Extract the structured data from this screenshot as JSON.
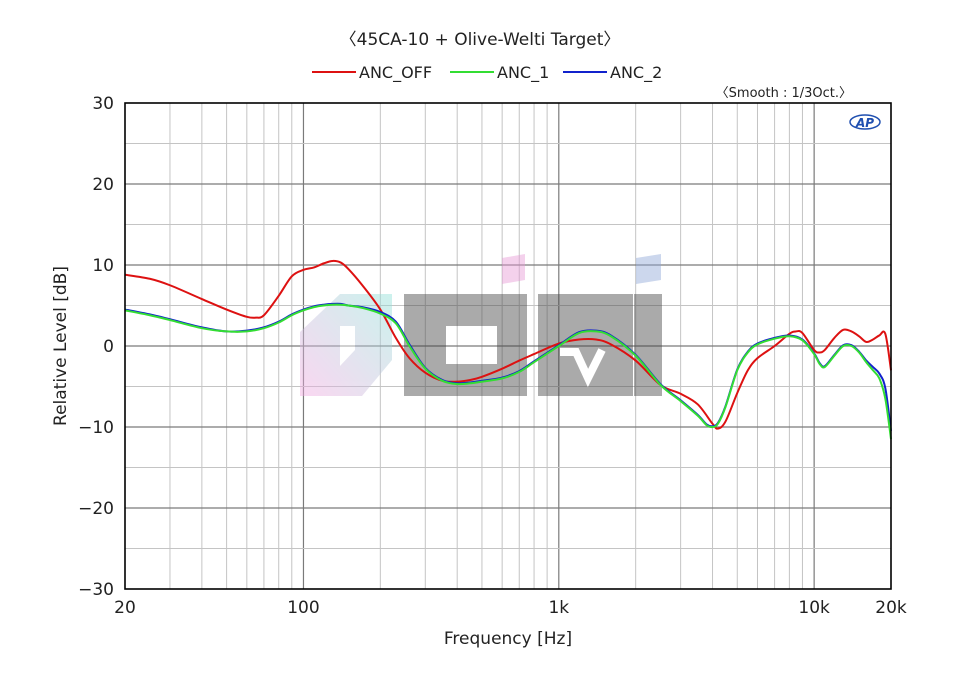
{
  "chart_data": {
    "type": "line",
    "title": "〈45CA-10 + Olive-Welti Target〉",
    "annotation": "〈Smooth : 1/3Oct.〉",
    "logo": "AP",
    "xlabel": "Frequency [Hz]",
    "ylabel": "Relative Level [dB]",
    "x_scale": "log",
    "xlim": [
      20,
      20000
    ],
    "ylim": [
      -30,
      30
    ],
    "x_ticks": [
      {
        "value": 20,
        "label": "20"
      },
      {
        "value": 100,
        "label": "100"
      },
      {
        "value": 1000,
        "label": "1k"
      },
      {
        "value": 10000,
        "label": "10k"
      },
      {
        "value": 20000,
        "label": "20k"
      }
    ],
    "y_ticks": [
      {
        "value": 30,
        "label": "30"
      },
      {
        "value": 20,
        "label": "20"
      },
      {
        "value": 10,
        "label": "10"
      },
      {
        "value": 0,
        "label": "0"
      },
      {
        "value": -10,
        "label": "−10"
      },
      {
        "value": -20,
        "label": "−20"
      },
      {
        "value": -30,
        "label": "−30"
      }
    ],
    "grid": true,
    "legend_position": "top-center",
    "series": [
      {
        "name": "ANC_OFF",
        "color": "#dd1111",
        "x": [
          20,
          25,
          30,
          40,
          50,
          60,
          65,
          70,
          80,
          90,
          100,
          110,
          120,
          130,
          140,
          150,
          170,
          200,
          230,
          260,
          300,
          350,
          400,
          450,
          500,
          600,
          700,
          800,
          1000,
          1200,
          1400,
          1600,
          2000,
          2500,
          3000,
          3500,
          4000,
          4200,
          4500,
          5000,
          5500,
          6000,
          7000,
          8000,
          8500,
          9000,
          10000,
          10500,
          11000,
          12000,
          13000,
          14000,
          15000,
          16000,
          17000,
          18000,
          19000,
          20000
        ],
        "y": [
          8.8,
          8.3,
          7.5,
          5.8,
          4.5,
          3.6,
          3.5,
          3.8,
          6.2,
          8.6,
          9.4,
          9.7,
          10.2,
          10.5,
          10.3,
          9.5,
          7.5,
          4.5,
          1.0,
          -1.5,
          -3.3,
          -4.3,
          -4.4,
          -4.2,
          -3.8,
          -2.8,
          -1.8,
          -1.0,
          0.3,
          0.8,
          0.8,
          0.2,
          -1.8,
          -4.8,
          -5.9,
          -7.2,
          -9.6,
          -10.2,
          -9.3,
          -5.8,
          -3.0,
          -1.5,
          0.0,
          1.5,
          1.8,
          1.6,
          -0.5,
          -0.8,
          -0.5,
          1.0,
          2.0,
          1.8,
          1.2,
          0.5,
          0.8,
          1.3,
          1.5,
          -3.0
        ]
      },
      {
        "name": "ANC_1",
        "color": "#33dd33",
        "x": [
          20,
          25,
          30,
          40,
          50,
          60,
          70,
          80,
          90,
          100,
          110,
          120,
          130,
          140,
          150,
          170,
          200,
          230,
          260,
          300,
          350,
          400,
          450,
          500,
          600,
          700,
          800,
          1000,
          1200,
          1400,
          1600,
          2000,
          2500,
          3000,
          3500,
          3800,
          4000,
          4200,
          4500,
          5000,
          5500,
          6000,
          7000,
          8000,
          9000,
          10000,
          10500,
          11000,
          12000,
          13000,
          14000,
          15000,
          16000,
          17000,
          18000,
          19000,
          20000
        ],
        "y": [
          4.4,
          3.8,
          3.2,
          2.2,
          1.8,
          1.8,
          2.2,
          2.9,
          3.8,
          4.4,
          4.8,
          5.0,
          5.1,
          5.1,
          5.0,
          4.7,
          4.0,
          2.8,
          0.0,
          -2.8,
          -4.3,
          -4.7,
          -4.6,
          -4.4,
          -4.0,
          -3.2,
          -2.0,
          0.0,
          1.6,
          1.8,
          1.2,
          -1.2,
          -4.8,
          -6.8,
          -8.6,
          -9.8,
          -10.0,
          -9.6,
          -7.5,
          -3.0,
          -0.8,
          0.2,
          0.9,
          1.2,
          0.7,
          -1.0,
          -2.2,
          -2.6,
          -1.2,
          0.0,
          0.0,
          -0.8,
          -2.0,
          -3.0,
          -4.0,
          -6.5,
          -11.5
        ]
      },
      {
        "name": "ANC_2",
        "color": "#1122cc",
        "x": [
          20,
          25,
          30,
          40,
          50,
          60,
          70,
          80,
          90,
          100,
          110,
          120,
          130,
          140,
          150,
          170,
          200,
          230,
          260,
          300,
          350,
          400,
          450,
          500,
          600,
          700,
          800,
          1000,
          1200,
          1400,
          1600,
          2000,
          2500,
          3000,
          3500,
          3800,
          4000,
          4200,
          4500,
          5000,
          5500,
          6000,
          7000,
          8000,
          9000,
          10000,
          10500,
          11000,
          12000,
          13000,
          14000,
          15000,
          16000,
          17000,
          18000,
          19000,
          20000
        ],
        "y": [
          4.5,
          3.9,
          3.3,
          2.3,
          1.8,
          1.9,
          2.3,
          3.0,
          3.9,
          4.5,
          4.9,
          5.1,
          5.2,
          5.2,
          5.0,
          4.8,
          4.2,
          3.0,
          0.2,
          -2.7,
          -4.2,
          -4.6,
          -4.5,
          -4.3,
          -3.9,
          -3.1,
          -1.9,
          0.1,
          1.7,
          1.9,
          1.3,
          -1.1,
          -4.7,
          -6.7,
          -8.5,
          -9.7,
          -9.9,
          -9.5,
          -7.4,
          -2.9,
          -0.7,
          0.3,
          1.0,
          1.3,
          0.8,
          -0.9,
          -2.1,
          -2.5,
          -1.1,
          0.1,
          0.1,
          -0.7,
          -1.8,
          -2.6,
          -3.4,
          -5.2,
          -10.5
        ]
      }
    ]
  }
}
